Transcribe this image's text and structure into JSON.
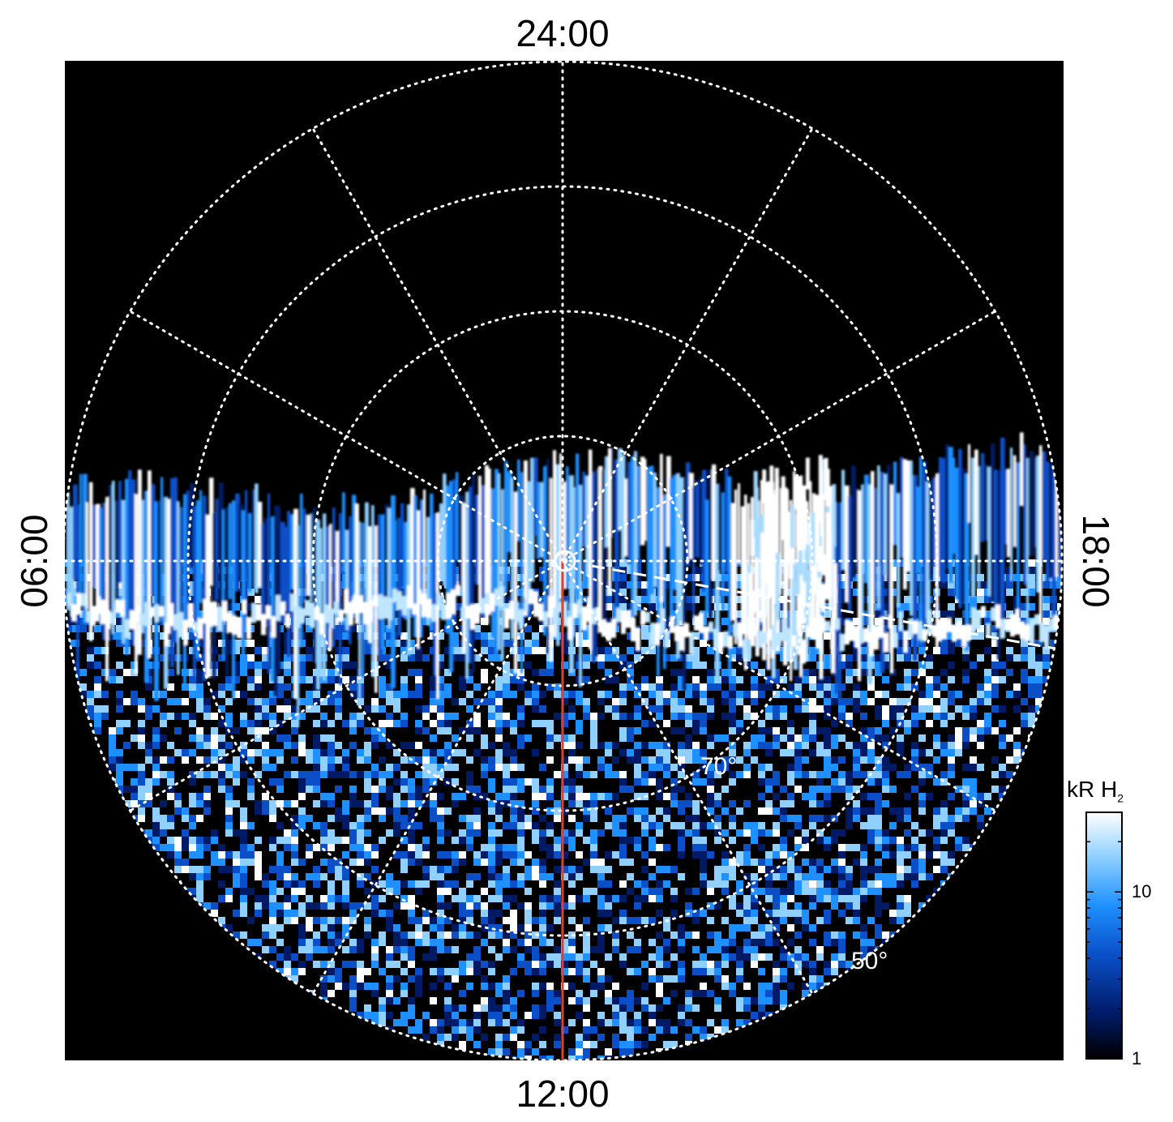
{
  "chart_data": {
    "type": "heatmap",
    "projection": "polar",
    "local_time_labels": {
      "top": "24:00",
      "bottom": "12:00",
      "left": "06:00",
      "right": "18:00"
    },
    "latitude_labels": [
      {
        "text": "70°",
        "lat": 70
      },
      {
        "text": "50°",
        "lat": 50
      }
    ],
    "latitude_circles": [
      80,
      70,
      60,
      50
    ],
    "latitude_range": [
      50,
      90
    ],
    "meridians_count": 12,
    "grid": true,
    "colorbar": {
      "label": "kR H",
      "label_sub": "2",
      "scale": "log",
      "range": [
        1,
        30
      ],
      "ticks": [
        {
          "value": 1,
          "label": "1"
        },
        {
          "value": 10,
          "label": "10"
        }
      ],
      "colormap": [
        "#000000",
        "#001a66",
        "#0a4fc8",
        "#1e90ff",
        "#8fd0ff",
        "#ffffff"
      ]
    },
    "features": {
      "red_line": "sub-observer meridian",
      "red_line_color": "#e0402a",
      "pole_marker": "circle"
    }
  }
}
